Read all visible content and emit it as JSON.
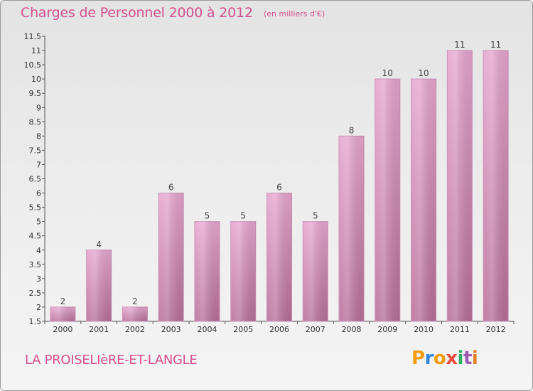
{
  "header": {
    "title": "Charges de Personnel 2000 à 2012",
    "subtitle": "(en milliers d'€)"
  },
  "footer": {
    "commune": "LA PROISELIèRE-ET-LANGLE",
    "logo_text": "Proxiti",
    "logo_colors": [
      "#f39c12",
      "#2e86de",
      "#f39c12",
      "#e74c3c",
      "#27ae60",
      "#9b59b6",
      "#e67e22"
    ]
  },
  "colors": {
    "bar_top": "#e6a6cf",
    "bar_bottom": "#b86f99",
    "accent": "#d4508f"
  },
  "chart_data": {
    "type": "bar",
    "title": "Charges de Personnel 2000 à 2012",
    "subtitle": "(en milliers d'€)",
    "categories": [
      "2000",
      "2001",
      "2002",
      "2003",
      "2004",
      "2005",
      "2006",
      "2007",
      "2008",
      "2009",
      "2010",
      "2011",
      "2012"
    ],
    "values": [
      2,
      4,
      2,
      6,
      5,
      5,
      6,
      5,
      8,
      10,
      10,
      11,
      11
    ],
    "data_labels": [
      "2",
      "4",
      "2",
      "6",
      "5",
      "5",
      "6",
      "5",
      "8",
      "10",
      "10",
      "11",
      "11"
    ],
    "ylim": [
      1.5,
      11.5
    ],
    "yticks": [
      "1.5",
      "2",
      "2.5",
      "3",
      "3.5",
      "4",
      "4.5",
      "5",
      "5.5",
      "6",
      "6.5",
      "7",
      "7.5",
      "8",
      "8.5",
      "9",
      "9.5",
      "10",
      "10.5",
      "11",
      "11.5"
    ],
    "xlabel": "",
    "ylabel": "",
    "grid": false,
    "legend": "none"
  }
}
